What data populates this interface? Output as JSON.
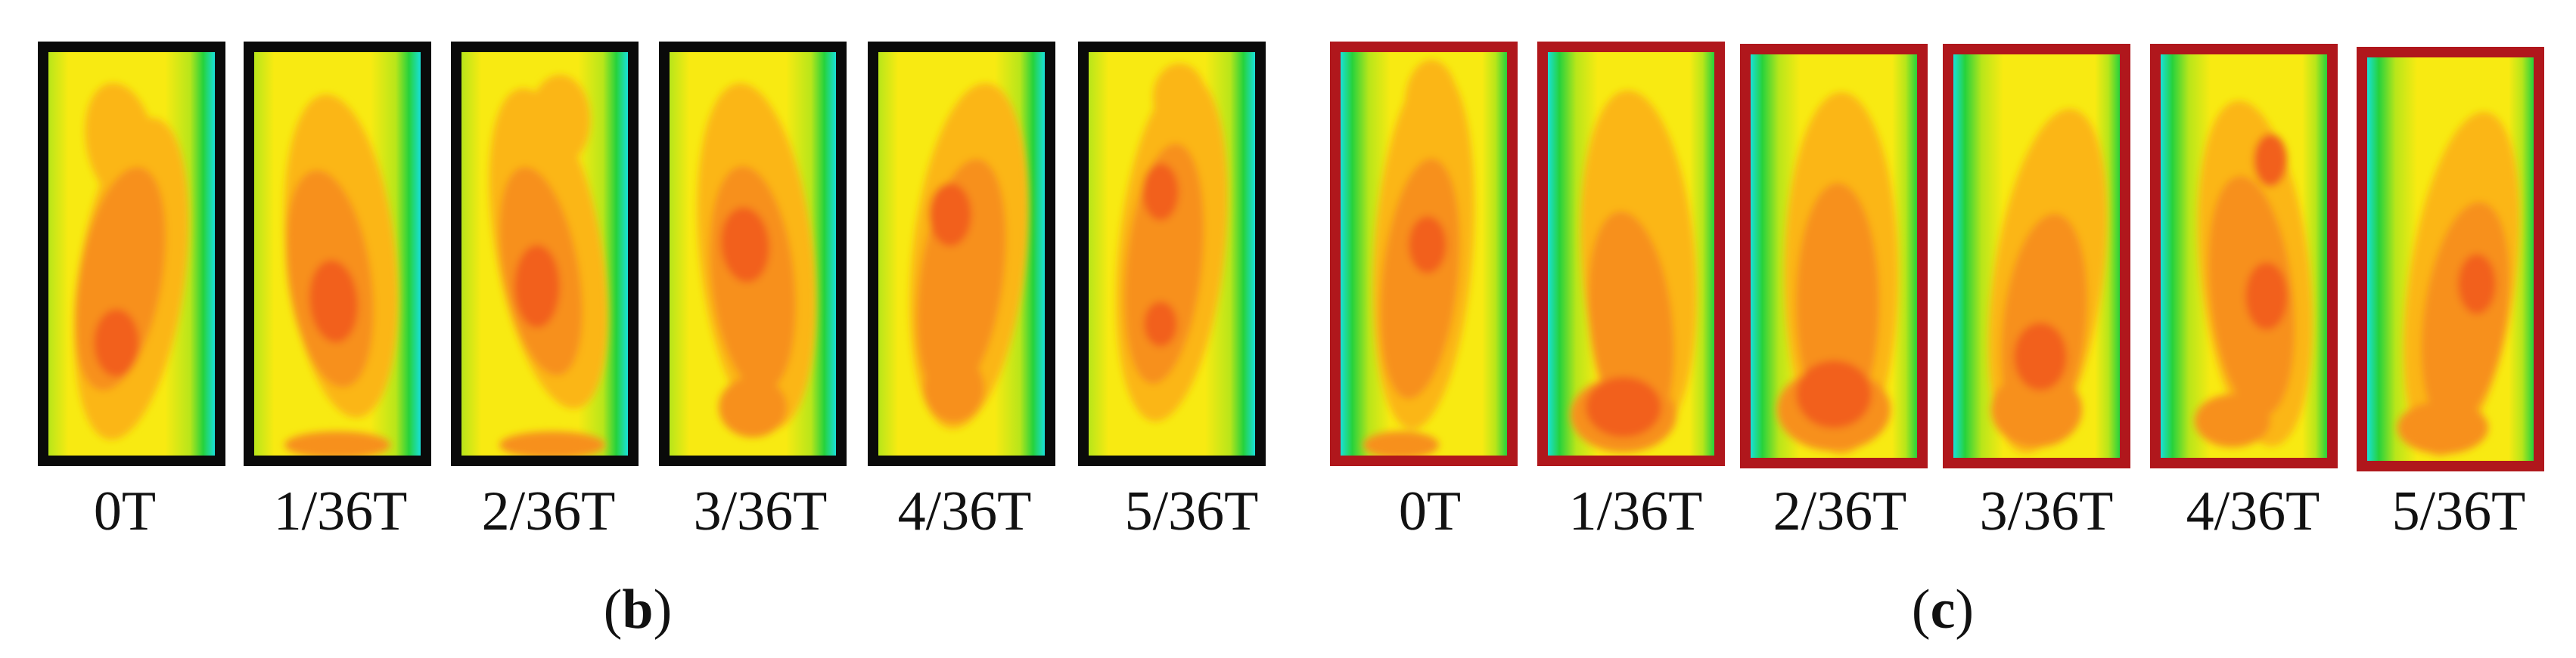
{
  "groups": [
    {
      "id": "b",
      "caption_open": "(",
      "caption_letter": "b",
      "caption_close": ")",
      "frame_color": "#0a0a0a",
      "panels": [
        {
          "label": "0T"
        },
        {
          "label": "1/36T"
        },
        {
          "label": "2/36T"
        },
        {
          "label": "3/36T"
        },
        {
          "label": "4/36T"
        },
        {
          "label": "5/36T"
        }
      ]
    },
    {
      "id": "c",
      "caption_open": "(",
      "caption_letter": "c",
      "caption_close": ")",
      "frame_color": "#b0171c",
      "panels": [
        {
          "label": "0T"
        },
        {
          "label": "1/36T"
        },
        {
          "label": "2/36T"
        },
        {
          "label": "3/36T"
        },
        {
          "label": "4/36T"
        },
        {
          "label": "5/36T"
        }
      ]
    }
  ],
  "colormap": {
    "cyan": "#19e0d8",
    "green": "#26d23c",
    "lime": "#b8e61a",
    "yellow": "#f8ea12",
    "amber": "#fbb612",
    "orange": "#f7901e",
    "deep_orange": "#f2611a"
  }
}
